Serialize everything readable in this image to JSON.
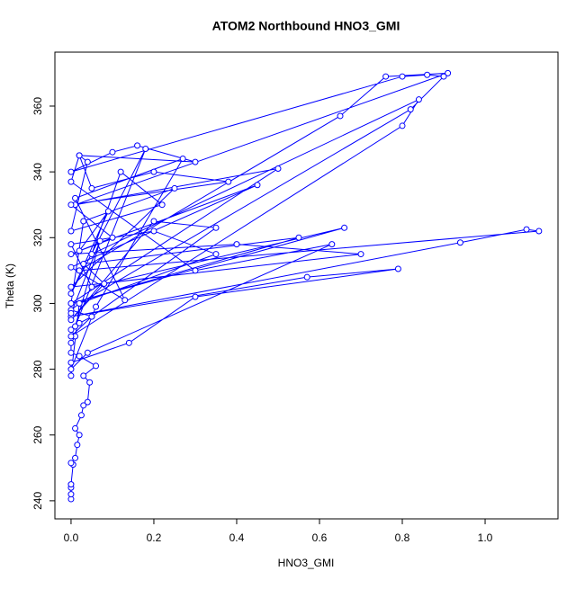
{
  "chart_data": {
    "type": "line",
    "title": "ATOM2 Northbound HNO3_GMI",
    "x_label": "HNO3_GMI",
    "y_label": "Theta (K)",
    "xlim": [
      -0.039,
      1.176
    ],
    "ylim": [
      234.5,
      376.4
    ],
    "xticks": [
      {
        "value": 0,
        "label": "0.0"
      },
      0.2,
      0.4,
      0.6,
      0.8,
      {
        "value": 1,
        "label": "1.0"
      }
    ],
    "yticks": [
      240,
      260,
      280,
      300,
      320,
      340,
      360
    ],
    "series": [
      {
        "color": "#0000ff",
        "x": [
          0.0,
          0.0,
          0.0,
          0.0,
          0.005,
          0.0,
          0.01,
          0.015,
          0.02,
          0.01,
          0.025,
          0.03,
          0.04,
          0.045,
          0.03,
          0.06,
          0.02,
          0.0,
          0.0,
          0.01,
          0.0,
          0.02,
          0.05,
          0.0,
          0.02,
          0.35,
          0.2,
          0.0,
          0.05,
          0.66,
          0.0,
          0.5,
          0.01,
          0.91,
          0.76,
          0.65,
          0.02,
          1.13,
          1.1,
          0.94,
          0.0,
          0.57,
          0.79,
          0.3,
          0.14,
          0.0,
          0.0,
          0.02,
          0.82,
          0.9,
          0.86,
          0.8,
          0.0,
          0.1,
          0.16,
          0.3,
          0.02,
          0.05,
          0.2,
          0.38,
          0.0,
          0.1,
          0.0,
          0.4,
          0.7,
          0.0,
          0.25,
          0.03,
          0.0,
          0.55,
          0.03,
          0.08,
          0.0,
          0.2,
          0.35,
          0.05,
          0.0,
          0.8,
          0.84,
          0.05,
          0.12,
          0.22,
          0.0,
          0.04,
          0.02,
          0.0,
          0.3,
          0.63,
          0.04,
          0.0,
          0.06,
          0.27,
          0.01,
          0.13,
          0.0,
          0.45,
          0.02,
          0.09,
          0.0,
          0.18,
          0.01,
          0.07,
          0.0
        ],
        "values": [
          240.5,
          242,
          244,
          245,
          251,
          251.5,
          253,
          257,
          260,
          262,
          266,
          269,
          270,
          276,
          278,
          281,
          284,
          285,
          288,
          290,
          292,
          294,
          296,
          298,
          300,
          315,
          322,
          318,
          305,
          323,
          300,
          341,
          330,
          370,
          369,
          357,
          310,
          322,
          322.5,
          318.5,
          296,
          308,
          310.5,
          302,
          288,
          282,
          278,
          300,
          359,
          369,
          369.5,
          369,
          340,
          346,
          348,
          343,
          345,
          335,
          340,
          337,
          330,
          320,
          315,
          318,
          315,
          305,
          335,
          325,
          300,
          320,
          312,
          306,
          295,
          325,
          323,
          296,
          290,
          354,
          362,
          315,
          340,
          330,
          322,
          343,
          345,
          337,
          310,
          318,
          285,
          280,
          299,
          344,
          332,
          301,
          311,
          336,
          316,
          328,
          303,
          347,
          293,
          319,
          297
        ]
      }
    ]
  }
}
